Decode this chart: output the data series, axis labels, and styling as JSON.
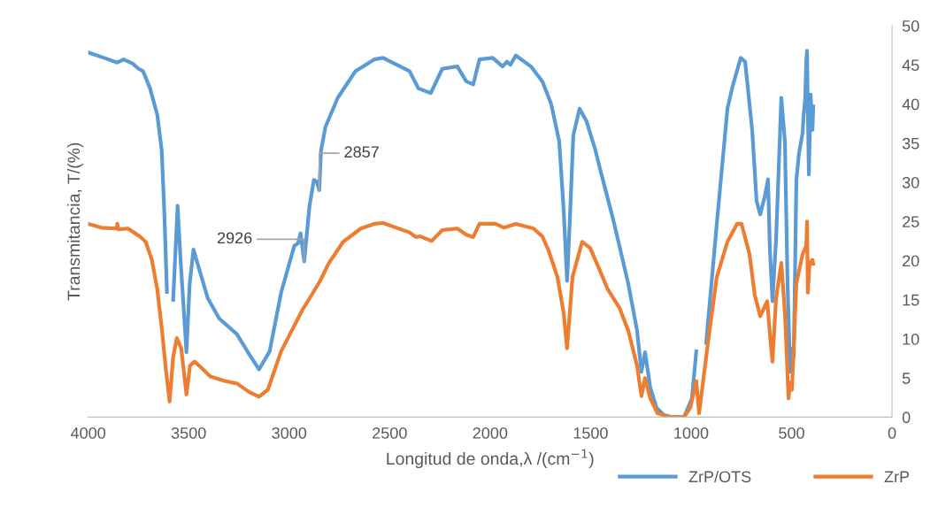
{
  "chart_data": {
    "type": "line",
    "xlabel": "Longitud de onda,λ /(cm$^{−1}$)",
    "ylabel": "Transmitancia, T/(%)",
    "xlim": [
      4000,
      0
    ],
    "xticks": [
      4000,
      3500,
      3000,
      2500,
      2000,
      1500,
      1000,
      500,
      0
    ],
    "ylim": [
      0,
      50
    ],
    "yticks": [
      0,
      5,
      10,
      15,
      20,
      25,
      30,
      35,
      40,
      45,
      50
    ],
    "grid": false,
    "legend": "bottom right",
    "marker": "none",
    "line_style": "solid",
    "annotations": [
      {
        "text": "2926",
        "x": 2926,
        "y": 19.9
      },
      {
        "text": "2857",
        "x": 2850,
        "y": 29.0
      }
    ],
    "series": [
      {
        "name": "ZrP/OTS",
        "color": "#5b9bd5",
        "x": [
          4000,
          3921,
          3855,
          3824,
          3780,
          3749,
          3727,
          3692,
          3656,
          3634,
          3621,
          3608,
          3595,
          3577,
          3555,
          3540,
          3511,
          3495,
          3476,
          3405,
          3348,
          3260,
          3198,
          3150,
          3097,
          3040,
          2974,
          2956,
          2943,
          2925,
          2899,
          2877,
          2863,
          2850,
          2841,
          2819,
          2758,
          2670,
          2577,
          2533,
          2401,
          2357,
          2295,
          2238,
          2163,
          2119,
          2084,
          2053,
          1987,
          1938,
          1916,
          1899,
          1872,
          1797,
          1740,
          1696,
          1656,
          1634,
          1617,
          1604,
          1586,
          1555,
          1520,
          1476,
          1454,
          1388,
          1313,
          1269,
          1247,
          1229,
          1203,
          1172,
          1137,
          1093,
          1035,
          996,
          974,
          960,
          925,
          872,
          819,
          793,
          753,
          731,
          696,
          674,
          656,
          634,
          617,
          608,
          595,
          577,
          551,
          533,
          520,
          507,
          502,
          489,
          476,
          463,
          445,
          441,
          432,
          427,
          423,
          419,
          414,
          405,
          396,
          392
        ],
        "values": [
          46.6,
          45.9,
          45.3,
          45.7,
          45.2,
          44.5,
          44.2,
          42.0,
          38.6,
          34.1,
          26.1,
          16.0,
          null,
          15.0,
          27.0,
          20.0,
          8.3,
          17.0,
          21.4,
          15.2,
          12.6,
          10.6,
          8.0,
          6.1,
          8.4,
          15.9,
          21.9,
          22.2,
          23.5,
          19.9,
          26.9,
          30.3,
          30.1,
          29.0,
          34.1,
          37.1,
          40.8,
          44.2,
          45.7,
          45.9,
          44.2,
          42.0,
          41.4,
          44.5,
          44.8,
          42.9,
          42.5,
          45.7,
          45.9,
          44.8,
          45.4,
          45.0,
          46.2,
          44.8,
          42.9,
          40.0,
          35.2,
          26.5,
          17.4,
          24.7,
          36.0,
          39.4,
          37.8,
          34.1,
          31.8,
          25.3,
          17.1,
          11.1,
          5.8,
          8.3,
          3.8,
          1.2,
          0.3,
          0.0,
          0.0,
          2.4,
          8.4,
          null,
          9.5,
          24.7,
          39.4,
          42.3,
          45.9,
          45.4,
          36.7,
          27.6,
          25.9,
          28.1,
          30.4,
          21.6,
          14.8,
          22.7,
          40.8,
          35.2,
          17.1,
          5.8,
          8.8,
          7.7,
          30.3,
          33.7,
          36.3,
          38.2,
          40.8,
          45.4,
          46.8,
          39.7,
          31.0,
          41.2,
          36.7,
          39.7
        ]
      },
      {
        "name": "ZrP",
        "color": "#ed7d31",
        "x": [
          4000,
          3934,
          3859,
          3855,
          3850,
          3802,
          3744,
          3714,
          3683,
          3656,
          3634,
          3612,
          3595,
          3577,
          3559,
          3537,
          3511,
          3493,
          3471,
          3436,
          3392,
          3317,
          3260,
          3198,
          3150,
          3106,
          3040,
          2934,
          2907,
          2846,
          2802,
          2731,
          2643,
          2577,
          2533,
          2401,
          2370,
          2348,
          2291,
          2238,
          2163,
          2119,
          2084,
          2053,
          1974,
          1930,
          1872,
          1784,
          1740,
          1709,
          1665,
          1634,
          1617,
          1590,
          1542,
          1502,
          1458,
          1414,
          1357,
          1313,
          1269,
          1247,
          1229,
          1203,
          1167,
          1106,
          1035,
          1004,
          974,
          960,
          916,
          872,
          819,
          771,
          749,
          709,
          683,
          656,
          621,
          604,
          595,
          577,
          551,
          533,
          515,
          507,
          498,
          476,
          445,
          427,
          423,
          419,
          410,
          396,
          392
        ],
        "values": [
          24.7,
          24.2,
          24.1,
          24.7,
          24.0,
          24.1,
          23.1,
          22.4,
          20.1,
          16.3,
          11.4,
          5.8,
          2.0,
          7.7,
          10.1,
          8.8,
          2.9,
          6.6,
          7.1,
          6.3,
          5.2,
          4.6,
          4.3,
          3.2,
          2.6,
          3.5,
          8.4,
          13.7,
          14.8,
          17.4,
          19.7,
          22.4,
          24.1,
          24.7,
          24.8,
          23.6,
          23.0,
          23.1,
          22.5,
          23.9,
          24.1,
          23.3,
          23.0,
          24.7,
          24.7,
          24.2,
          24.7,
          24.1,
          23.1,
          21.3,
          17.9,
          13.3,
          8.8,
          17.9,
          22.4,
          21.6,
          19.0,
          16.3,
          14.0,
          11.1,
          6.6,
          2.7,
          5.0,
          2.4,
          0.5,
          0.0,
          0.0,
          1.2,
          4.6,
          0.5,
          9.5,
          17.9,
          22.4,
          24.7,
          24.7,
          20.8,
          15.6,
          12.9,
          14.8,
          9.5,
          7.1,
          15.2,
          19.7,
          13.3,
          2.4,
          4.4,
          3.5,
          17.1,
          20.8,
          21.9,
          25.0,
          15.9,
          19.7,
          20.1,
          19.6
        ]
      }
    ]
  }
}
